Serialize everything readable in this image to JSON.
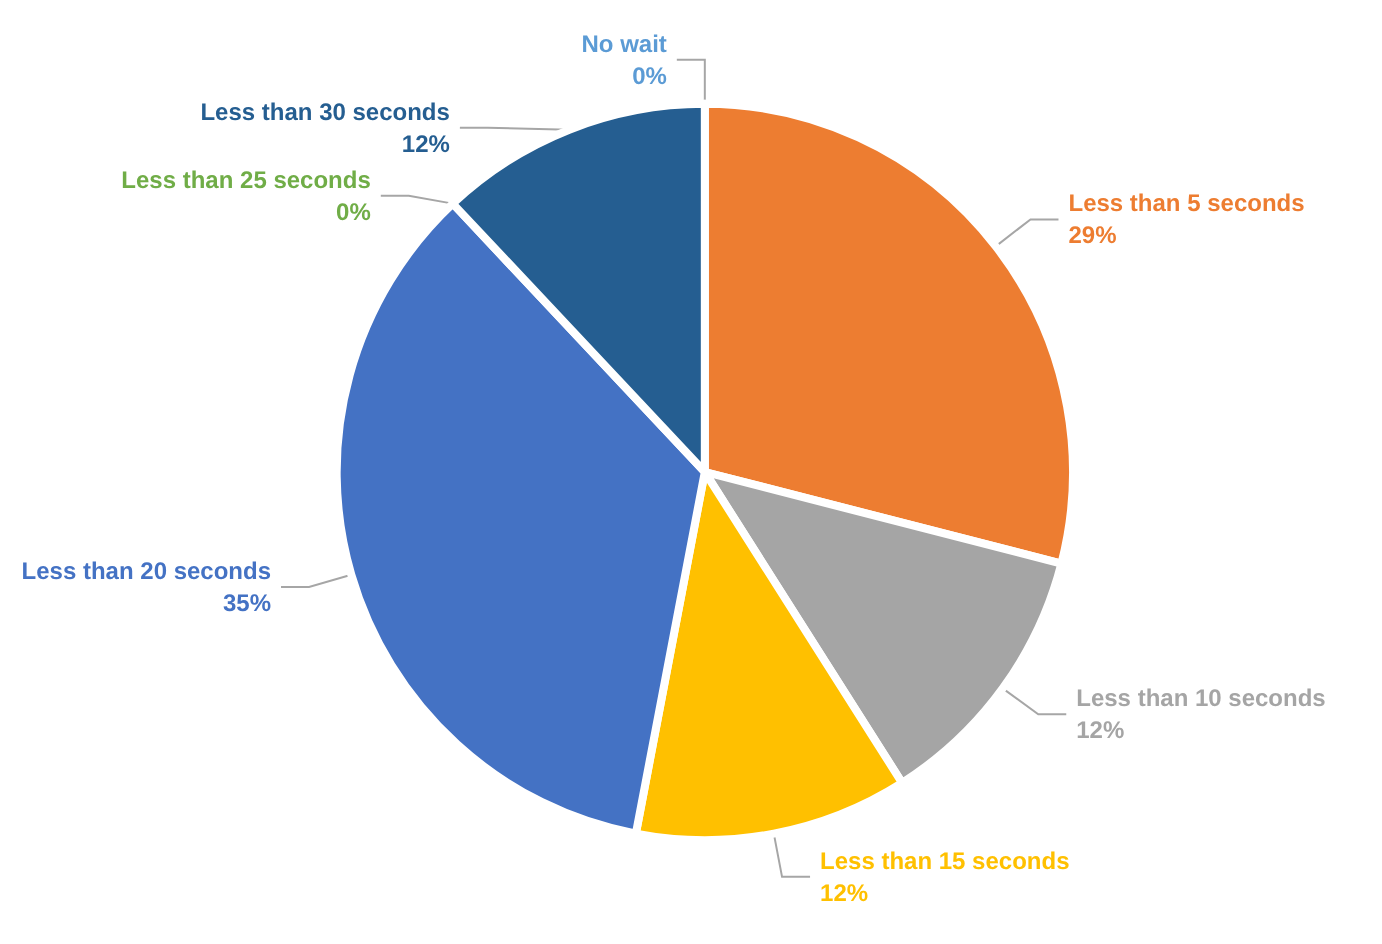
{
  "chart_data": {
    "type": "pie",
    "categories": [
      "No wait",
      "Less than 5 seconds",
      "Less than 10 seconds",
      "Less than 15 seconds",
      "Less than 20 seconds",
      "Less than 25 seconds",
      "Less than 30 seconds"
    ],
    "values": [
      0,
      29,
      12,
      12,
      35,
      0,
      12
    ],
    "value_labels": [
      "0%",
      "29%",
      "12%",
      "12%",
      "35%",
      "0%",
      "12%"
    ],
    "colors": [
      "#5b9bd5",
      "#ed7d31",
      "#a5a5a5",
      "#ffc000",
      "#4472c4",
      "#70ad47",
      "#255e91"
    ],
    "legend": false
  }
}
